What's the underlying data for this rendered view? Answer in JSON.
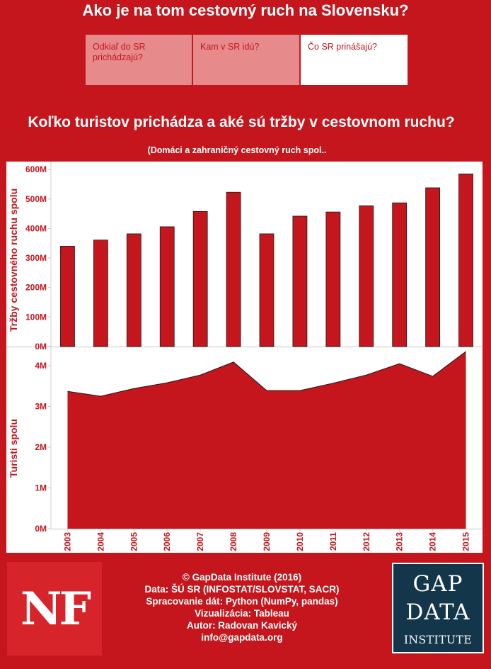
{
  "page": {
    "title": "Ako je na tom cestovný ruch na Slovensku?"
  },
  "tabs": [
    {
      "label": "Odkiaľ do SR prichádzajú?",
      "active": false
    },
    {
      "label": "Kam v SR idú?",
      "active": false
    },
    {
      "label": "Čo SR prinášajú?",
      "active": true
    }
  ],
  "colors": {
    "background": "#c4161c",
    "bar": "#c4161c",
    "area": "#c4161c",
    "tab_inactive": "#e68a8c",
    "panel": "#ffffff"
  },
  "chart_data": [
    {
      "type": "bar",
      "title": "Koľko turistov prichádza a aké sú tržby v cestovnom ruchu?",
      "subtitle": "(Domáci a zahraničný cestovný ruch spol..",
      "ylabel": "Tržby cestovného ruchu spolu",
      "categories": [
        "2003",
        "2004",
        "2005",
        "2006",
        "2007",
        "2008",
        "2009",
        "2010",
        "2011",
        "2012",
        "2013",
        "2014",
        "2015"
      ],
      "values": [
        340000000,
        361000000,
        382000000,
        406000000,
        458000000,
        523000000,
        382000000,
        442000000,
        456000000,
        477000000,
        487000000,
        538000000,
        585000000
      ],
      "ylim": [
        0,
        610000000
      ],
      "yticks": [
        0,
        100000000,
        200000000,
        300000000,
        400000000,
        500000000,
        600000000
      ],
      "ytick_labels": [
        "0M",
        "100M",
        "200M",
        "300M",
        "400M",
        "500M",
        "600M"
      ],
      "grid": false
    },
    {
      "type": "area",
      "ylabel": "Turisti spolu",
      "x": [
        "2003",
        "2004",
        "2005",
        "2006",
        "2007",
        "2008",
        "2009",
        "2010",
        "2011",
        "2012",
        "2013",
        "2014",
        "2015"
      ],
      "values": [
        3370000,
        3250000,
        3440000,
        3580000,
        3770000,
        4090000,
        3390000,
        3390000,
        3570000,
        3770000,
        4050000,
        3740000,
        4350000
      ],
      "ylim": [
        0,
        4470000
      ],
      "yticks": [
        0,
        1000000,
        2000000,
        3000000,
        4000000
      ],
      "ytick_labels": [
        "0M",
        "1M",
        "2M",
        "3M",
        "4M"
      ],
      "xtick_labels": [
        "2003",
        "2004",
        "2005",
        "2006",
        "2007",
        "2008",
        "2009",
        "2010",
        "2011",
        "2012",
        "2013",
        "2014",
        "2015"
      ],
      "grid": false
    }
  ],
  "footer": {
    "lines": [
      "© GapData Institute (2016)",
      "Data: ŠÚ SR (INFOSTAT/SLOVSTAT, SACR)",
      "Spracovanie dát: Python (NumPy, pandas)",
      "Vizualizácia: Tableau",
      "Autor: Radovan Kavický",
      "info@gapdata.org"
    ]
  },
  "logos": {
    "nf": "NF",
    "gap": [
      "GAP",
      "DATA",
      "INSTITUTE"
    ]
  }
}
